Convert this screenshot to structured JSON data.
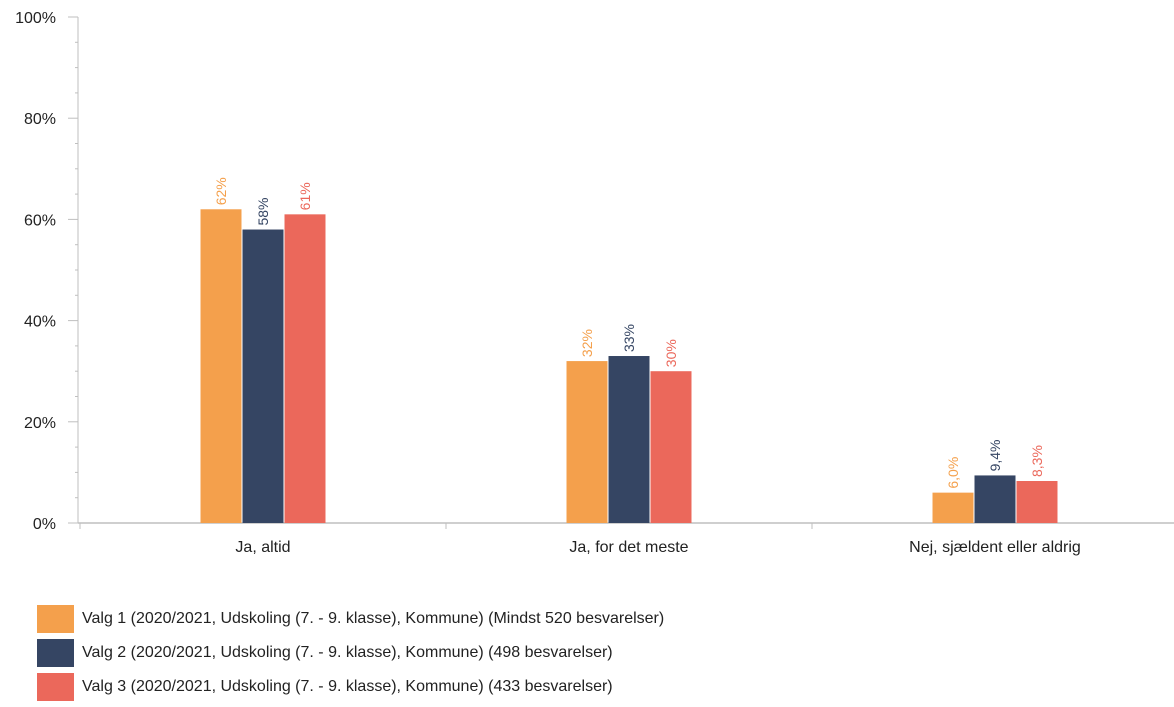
{
  "chart_data": {
    "type": "bar",
    "categories": [
      "Ja, altid",
      "Ja, for det meste",
      "Nej, sjældent eller aldrig"
    ],
    "series": [
      {
        "name": "Valg 1 (2020/2021, Udskoling (7. - 9. klasse), Kommune) (Mindst 520 besvarelser)",
        "color": "#F4A04C",
        "values": [
          62,
          32,
          6.0
        ],
        "labels": [
          "62%",
          "32%",
          "6,0%"
        ]
      },
      {
        "name": "Valg 2 (2020/2021, Udskoling (7. - 9. klasse), Kommune) (498 besvarelser)",
        "color": "#354563",
        "values": [
          58,
          33,
          9.4
        ],
        "labels": [
          "58%",
          "33%",
          "9,4%"
        ]
      },
      {
        "name": "Valg 3 (2020/2021, Udskoling (7. - 9. klasse), Kommune) (433 besvarelser)",
        "color": "#EB685B",
        "values": [
          61,
          30,
          8.3
        ],
        "labels": [
          "61%",
          "30%",
          "8,3%"
        ]
      }
    ],
    "y_ticks": [
      0,
      20,
      40,
      60,
      80,
      100
    ],
    "y_tick_labels": [
      "0%",
      "20%",
      "40%",
      "60%",
      "80%",
      "100%"
    ],
    "ylim": [
      0,
      100
    ],
    "grid": false,
    "legend_position": "bottom-left",
    "title": "",
    "xlabel": "",
    "ylabel": ""
  }
}
